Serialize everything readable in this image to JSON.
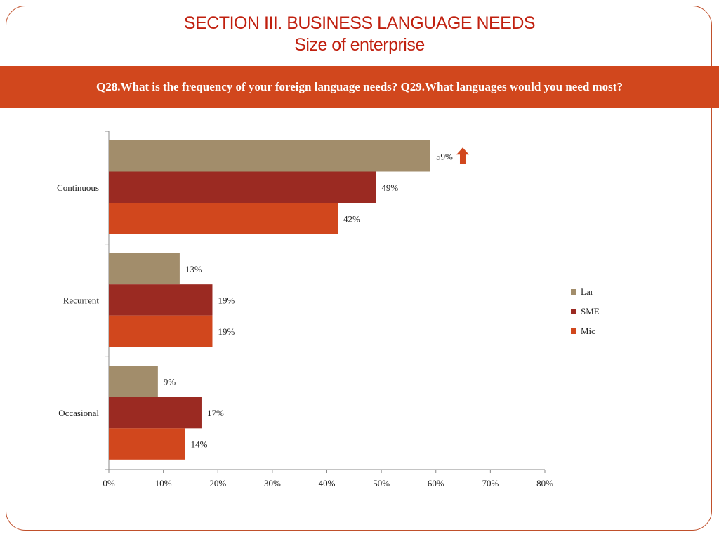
{
  "page": {
    "title_line1": "SECTION III. BUSINESS LANGUAGE NEEDS",
    "title_line2": "Size of enterprise",
    "question": "Q28.What is the frequency of your foreign language needs? Q29.What languages would you need most?"
  },
  "colors": {
    "lar": "#a28d6b",
    "sme": "#9b2a22",
    "mic": "#d1471d",
    "banner": "#d1471d",
    "title": "#c0200f",
    "arrow": "#d1471d"
  },
  "chart_data": {
    "type": "bar",
    "orientation": "horizontal",
    "categories": [
      "Continuous",
      "Recurrent",
      "Occasional"
    ],
    "series": [
      {
        "name": "Lar",
        "values": [
          59,
          13,
          9
        ],
        "labels": [
          "59%",
          "13%",
          "9%"
        ]
      },
      {
        "name": "SME",
        "values": [
          49,
          19,
          17
        ],
        "labels": [
          "49%",
          "19%",
          "17%"
        ]
      },
      {
        "name": "Mic",
        "values": [
          42,
          19,
          14
        ],
        "labels": [
          "42%",
          "19%",
          "14%"
        ]
      }
    ],
    "xlim": [
      0,
      80
    ],
    "xticks": [
      0,
      10,
      20,
      30,
      40,
      50,
      60,
      70,
      80
    ],
    "xtick_labels": [
      "0%",
      "10%",
      "20%",
      "30%",
      "40%",
      "50%",
      "60%",
      "70%",
      "80%"
    ],
    "legend_position": "right",
    "grid": false,
    "annotations": [
      {
        "type": "up-arrow",
        "category": "Continuous",
        "series": "Lar"
      }
    ]
  }
}
